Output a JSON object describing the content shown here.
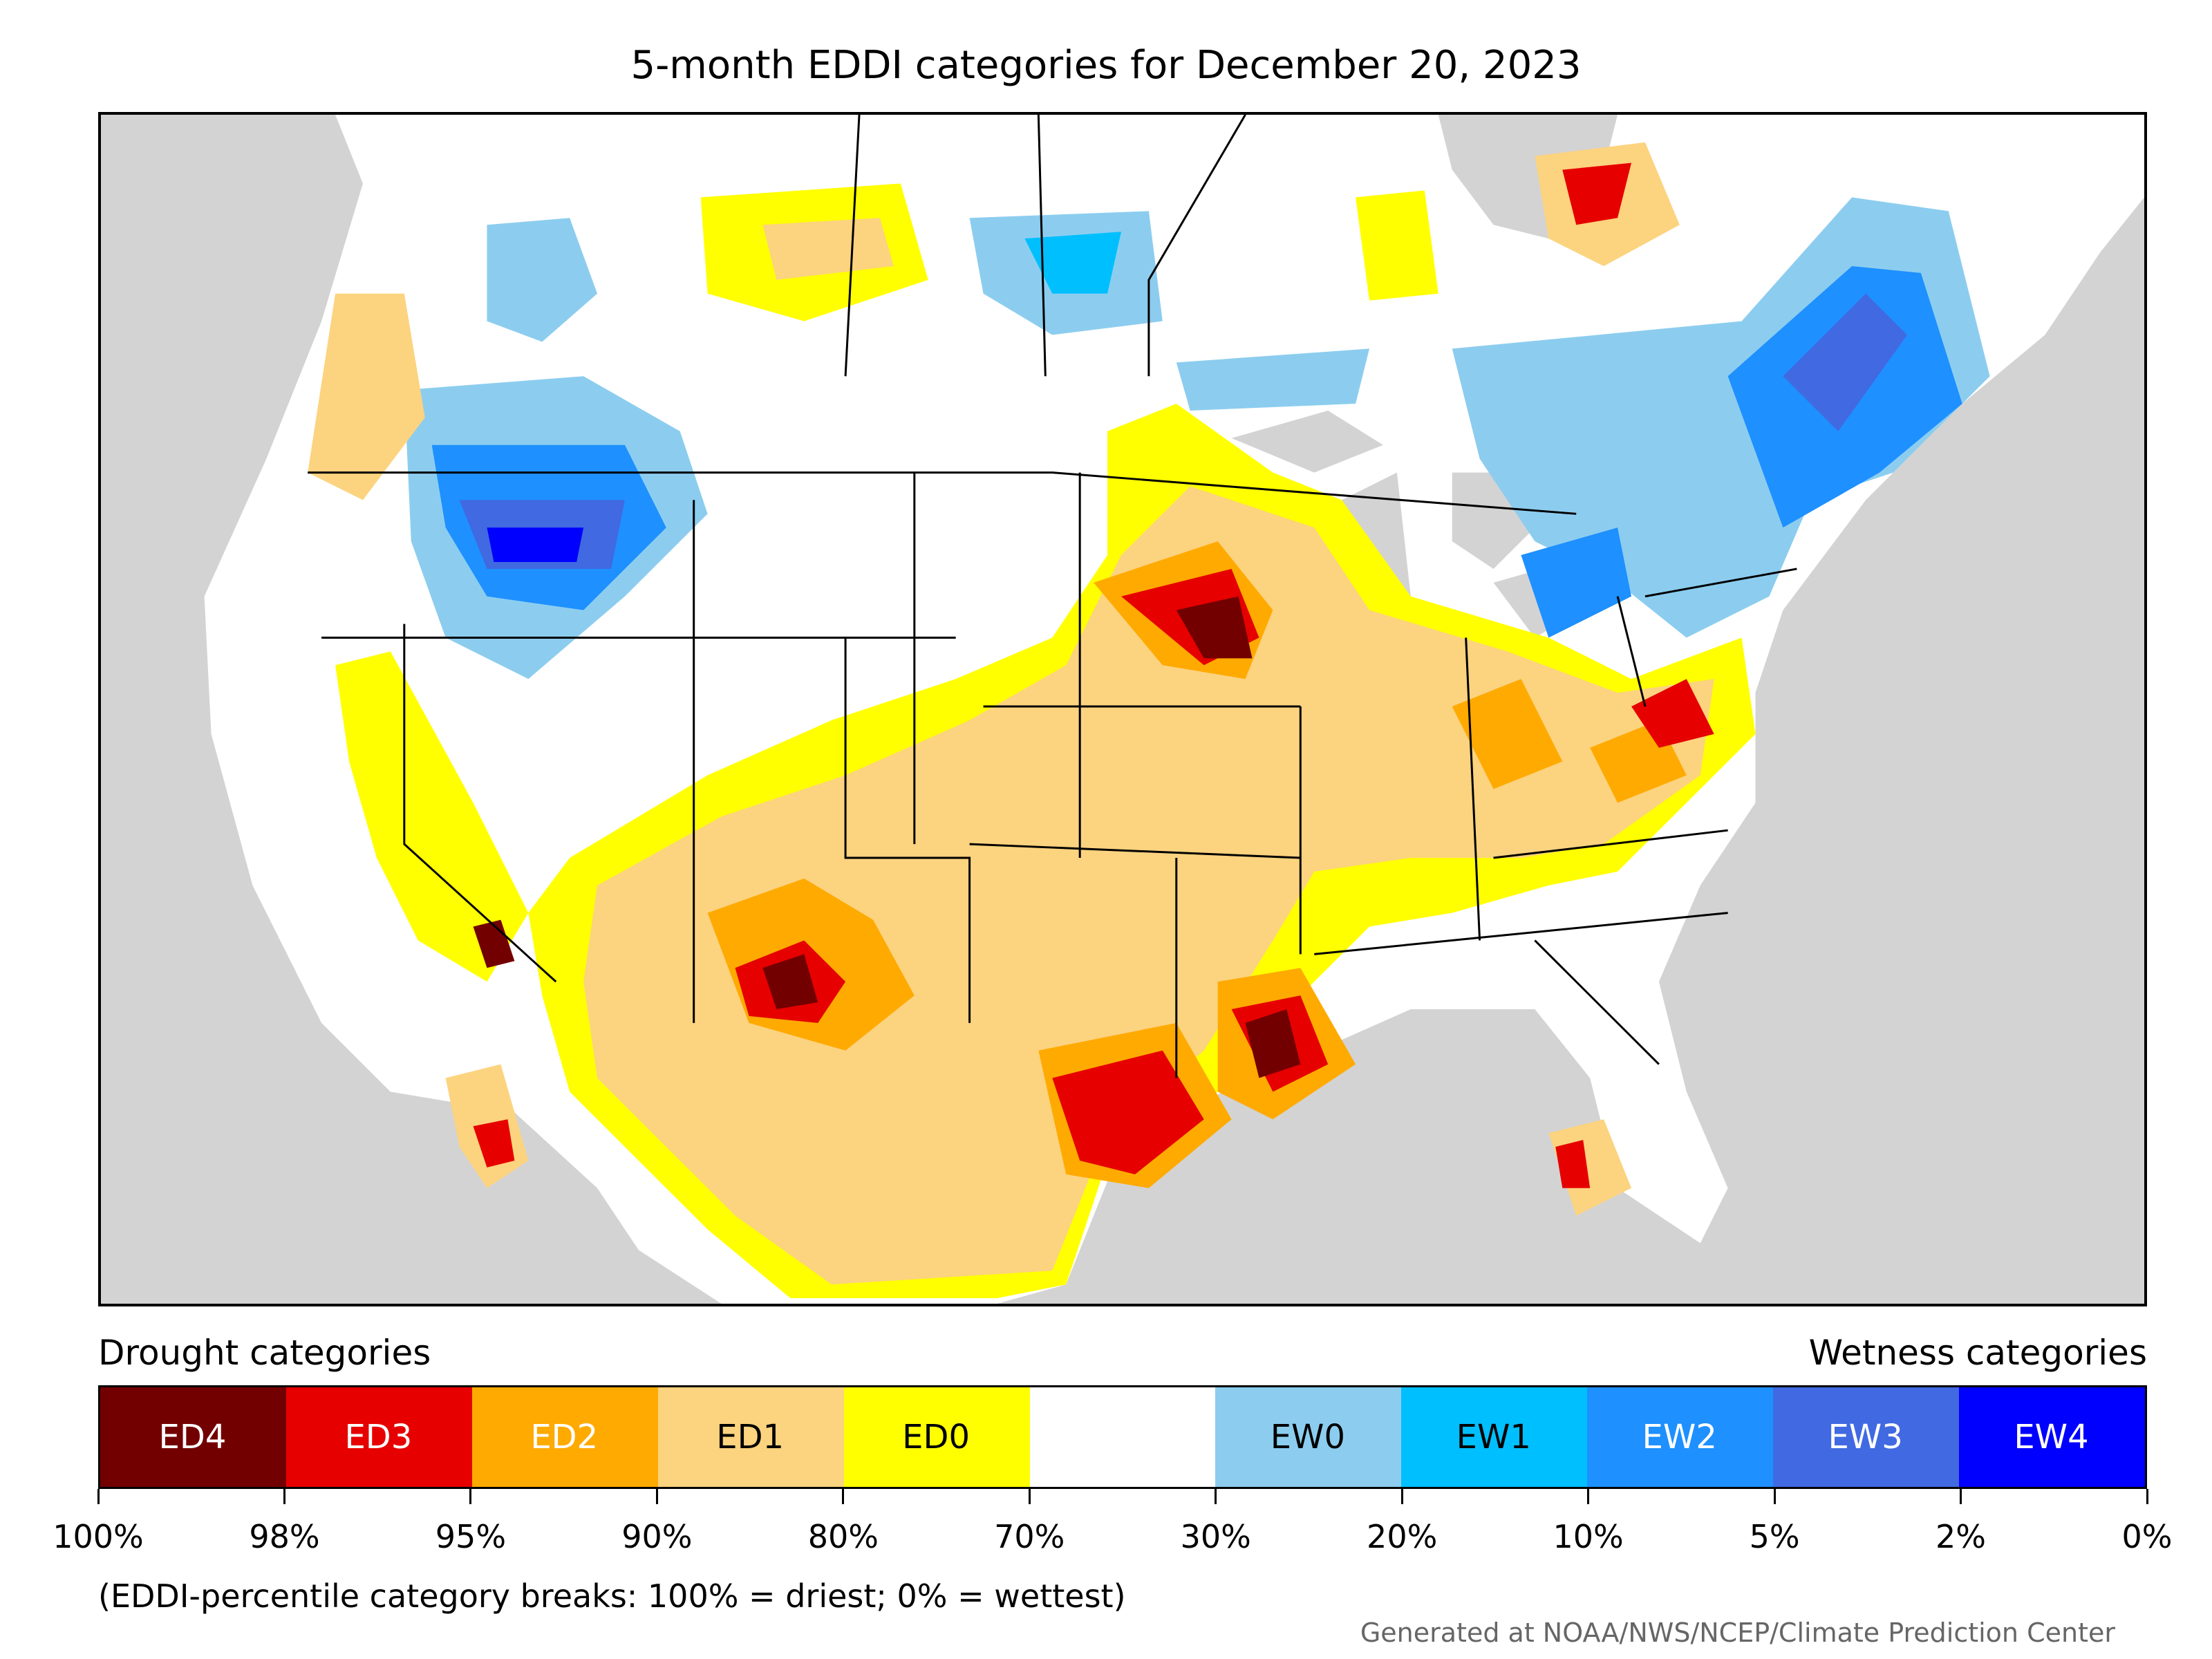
{
  "title": "5-month EDDI categories for December 20, 2023",
  "legend": {
    "drought_heading": "Drought categories",
    "wetness_heading": "Wetness categories",
    "categories": [
      {
        "label": "ED4",
        "color": "#730000",
        "text_color": "#ffffff"
      },
      {
        "label": "ED3",
        "color": "#e60000",
        "text_color": "#ffffff"
      },
      {
        "label": "ED2",
        "color": "#ffaa00",
        "text_color": "#ffffff"
      },
      {
        "label": "ED1",
        "color": "#fcd37f",
        "text_color": "#000000"
      },
      {
        "label": "ED0",
        "color": "#ffff00",
        "text_color": "#000000"
      },
      {
        "label": "",
        "color": "#ffffff",
        "text_color": "#000000"
      },
      {
        "label": "EW0",
        "color": "#8ccdef",
        "text_color": "#000000"
      },
      {
        "label": "EW1",
        "color": "#00bfff",
        "text_color": "#000000"
      },
      {
        "label": "EW2",
        "color": "#1e90ff",
        "text_color": "#ffffff"
      },
      {
        "label": "EW3",
        "color": "#4169e1",
        "text_color": "#ffffff"
      },
      {
        "label": "EW4",
        "color": "#0000ff",
        "text_color": "#ffffff"
      }
    ],
    "tick_labels": [
      "100%",
      "98%",
      "95%",
      "90%",
      "80%",
      "70%",
      "30%",
      "20%",
      "10%",
      "5%",
      "2%",
      "0%"
    ]
  },
  "note": "(EDDI-percentile category breaks: 100% = driest; 0% = wettest)",
  "credit": "Generated at NOAA/NWS/NCEP/Climate Prediction Center"
}
